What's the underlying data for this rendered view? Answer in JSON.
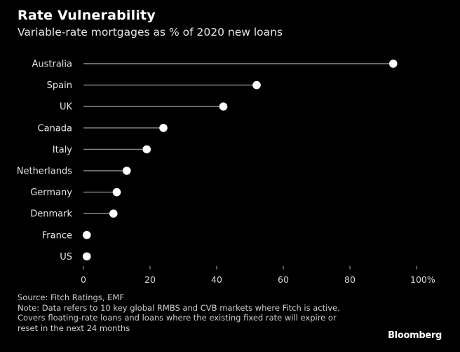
{
  "title": "Rate Vulnerability",
  "subtitle": "Variable-rate mortgages as % of 2020 new loans",
  "chart_data": {
    "type": "dot",
    "categories": [
      "Australia",
      "Spain",
      "UK",
      "Canada",
      "Italy",
      "Netherlands",
      "Germany",
      "Denmark",
      "France",
      "US"
    ],
    "values": [
      93,
      52,
      42,
      24,
      19,
      13,
      10,
      9,
      1,
      1
    ],
    "xticks": [
      0,
      20,
      40,
      60,
      80,
      100
    ],
    "xtick_labels": [
      "0",
      "20",
      "40",
      "60",
      "80",
      "100%"
    ],
    "xlim": [
      0,
      100
    ],
    "xlabel": "",
    "ylabel": ""
  },
  "footnotes": {
    "source": "Source: Fitch Ratings, EMF",
    "note_lines": [
      "Note: Data refers to 10 key global RMBS and CVB markets where Fitch is active.",
      "Covers floating-rate loans and loans where the existing fixed rate will expire or",
      "reset in the next 24 months"
    ]
  },
  "brand": "Bloomberg",
  "colors": {
    "background": "#000000",
    "dot": "#ffffff",
    "stem": "#8c8c8c",
    "grid": "#333333",
    "text": "#ffffff"
  }
}
